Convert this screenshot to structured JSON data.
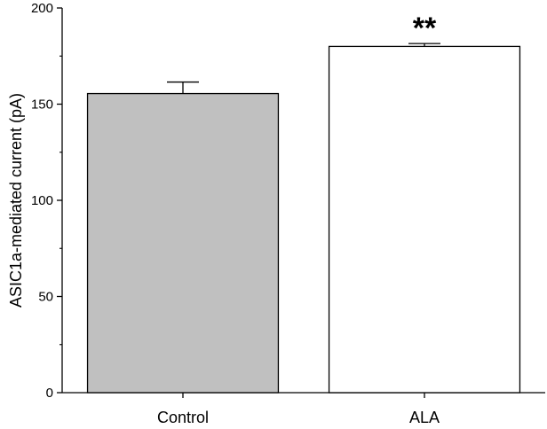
{
  "chart_data": {
    "type": "bar",
    "categories": [
      "Control",
      "ALA"
    ],
    "values": [
      155.5,
      180.0
    ],
    "errors": [
      6.0,
      1.5
    ],
    "bar_colors": [
      "#c0c0c0",
      "#ffffff"
    ],
    "significance": [
      "",
      "**"
    ],
    "title": "",
    "xlabel": "",
    "ylabel": "ASIC1a-mediated current (pA)",
    "ylim": [
      0,
      200
    ],
    "yticks": [
      0,
      50,
      100,
      150,
      200
    ],
    "grid": false,
    "legend": "none"
  }
}
